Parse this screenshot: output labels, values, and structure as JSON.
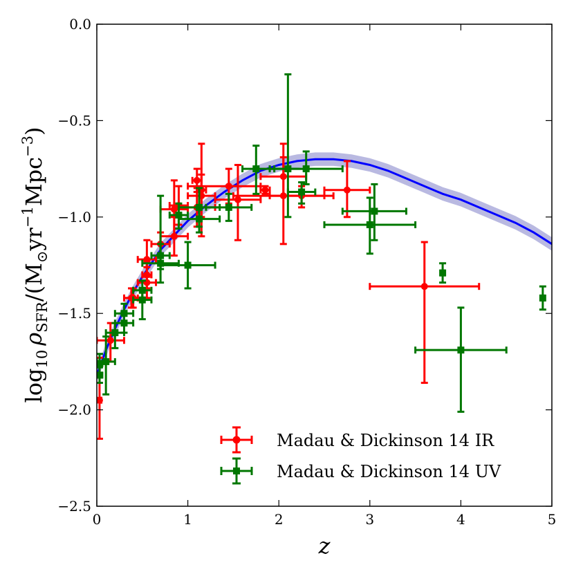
{
  "chart_data": {
    "type": "scatter",
    "title": "",
    "xlabel": "z",
    "ylabel": "log10 ρSFR/(M⊙yr−1Mpc−3)",
    "ylabel_parts": {
      "prefix": "log",
      "prefix_sub": "10",
      "rho": "ρ",
      "rho_sub": "SFR",
      "unit_open": "/(M",
      "sun": "⊙",
      "yr": "yr",
      "yr_exp": "−1",
      "mpc": "Mpc",
      "mpc_exp": "−3",
      "unit_close": ")"
    },
    "xlim": [
      0,
      5
    ],
    "ylim": [
      -2.5,
      0.0
    ],
    "xticks": [
      0,
      1,
      2,
      3,
      4,
      5
    ],
    "xtick_labels": [
      "0",
      "1",
      "2",
      "3",
      "4",
      "5"
    ],
    "yticks": [
      -2.5,
      -2.0,
      -1.5,
      -1.0,
      -0.5,
      0.0
    ],
    "ytick_labels": [
      "−2.5",
      "−2.0",
      "−1.5",
      "−1.0",
      "−0.5",
      "0.0"
    ],
    "legend_position": "lower-right",
    "colors": {
      "ir": "#ff0000",
      "uv": "#007700",
      "model": "#0000ff",
      "band": "#8080c8"
    },
    "series": [
      {
        "name": "Madau & Dickinson 14 IR",
        "marker": "circle",
        "color": "#ff0000",
        "points": [
          {
            "x": 0.03,
            "y": -1.95,
            "xlo": 0.0,
            "xhi": 0.05,
            "ylo": -2.15,
            "yhi": -1.73
          },
          {
            "x": 0.15,
            "y": -1.64,
            "xlo": 0.0,
            "xhi": 0.3,
            "ylo": -1.75,
            "yhi": -1.55
          },
          {
            "x": 0.38,
            "y": -1.42,
            "xlo": 0.3,
            "xhi": 0.45,
            "ylo": -1.47,
            "yhi": -1.37
          },
          {
            "x": 0.4,
            "y": -1.42,
            "xlo": 0.3,
            "xhi": 0.5,
            "ylo": -1.47,
            "yhi": -1.37
          },
          {
            "x": 0.55,
            "y": -1.34,
            "xlo": 0.45,
            "xhi": 0.65,
            "ylo": -1.42,
            "yhi": -1.26
          },
          {
            "x": 0.55,
            "y": -1.22,
            "xlo": 0.45,
            "xhi": 0.65,
            "ylo": -1.31,
            "yhi": -1.12
          },
          {
            "x": 0.55,
            "y": -1.3,
            "xlo": 0.5,
            "xhi": 0.6,
            "ylo": -1.37,
            "yhi": -1.23
          },
          {
            "x": 0.7,
            "y": -1.14,
            "xlo": 0.6,
            "xhi": 0.8,
            "ylo": -1.2,
            "yhi": -1.08
          },
          {
            "x": 0.85,
            "y": -1.1,
            "xlo": 0.7,
            "xhi": 1.0,
            "ylo": -1.2,
            "yhi": -1.0
          },
          {
            "x": 0.9,
            "y": -0.94,
            "xlo": 0.8,
            "xhi": 1.0,
            "ylo": -1.04,
            "yhi": -0.84
          },
          {
            "x": 0.85,
            "y": -0.96,
            "xlo": 0.7,
            "xhi": 1.0,
            "ylo": -1.1,
            "yhi": -0.81
          },
          {
            "x": 1.1,
            "y": -0.81,
            "xlo": 1.05,
            "xhi": 1.15,
            "ylo": -0.87,
            "yhi": -0.75
          },
          {
            "x": 1.15,
            "y": -0.89,
            "xlo": 1.0,
            "xhi": 1.3,
            "ylo": -1.0,
            "yhi": -0.78
          },
          {
            "x": 1.15,
            "y": -0.86,
            "xlo": 1.1,
            "xhi": 1.2,
            "ylo": -1.1,
            "yhi": -0.62
          },
          {
            "x": 1.1,
            "y": -0.95,
            "xlo": 0.9,
            "xhi": 1.3,
            "ylo": -1.05,
            "yhi": -0.85
          },
          {
            "x": 1.45,
            "y": -0.84,
            "xlo": 1.0,
            "xhi": 1.8,
            "ylo": -0.93,
            "yhi": -0.75
          },
          {
            "x": 1.55,
            "y": -0.91,
            "xlo": 1.3,
            "xhi": 1.8,
            "ylo": -1.12,
            "yhi": -0.73
          },
          {
            "x": 1.85,
            "y": -0.86,
            "xlo": 1.8,
            "xhi": 1.9,
            "ylo": -0.88,
            "yhi": -0.84
          },
          {
            "x": 2.05,
            "y": -0.79,
            "xlo": 1.8,
            "xhi": 2.3,
            "ylo": -0.89,
            "yhi": -0.69
          },
          {
            "x": 2.05,
            "y": -0.89,
            "xlo": 1.5,
            "xhi": 2.6,
            "ylo": -1.14,
            "yhi": -0.62
          },
          {
            "x": 2.25,
            "y": -0.89,
            "xlo": 1.9,
            "xhi": 2.5,
            "ylo": -0.95,
            "yhi": -0.84
          },
          {
            "x": 2.75,
            "y": -0.86,
            "xlo": 2.5,
            "xhi": 3.0,
            "ylo": -1.0,
            "yhi": -0.71
          },
          {
            "x": 3.6,
            "y": -1.36,
            "xlo": 3.0,
            "xhi": 4.2,
            "ylo": -1.86,
            "yhi": -1.13
          }
        ]
      },
      {
        "name": "Madau & Dickinson 14 UV",
        "marker": "square",
        "color": "#007700",
        "points": [
          {
            "x": 0.03,
            "y": -1.76,
            "xlo": 0.0,
            "xhi": 0.06,
            "ylo": -1.82,
            "yhi": -1.71
          },
          {
            "x": 0.03,
            "y": -1.82,
            "xlo": 0.0,
            "xhi": 0.06,
            "ylo": -1.86,
            "yhi": -1.78
          },
          {
            "x": 0.1,
            "y": -1.75,
            "xlo": 0.0,
            "xhi": 0.2,
            "ylo": -1.92,
            "yhi": -1.62
          },
          {
            "x": 0.2,
            "y": -1.6,
            "xlo": 0.1,
            "xhi": 0.3,
            "ylo": -1.68,
            "yhi": -1.55
          },
          {
            "x": 0.3,
            "y": -1.55,
            "xlo": 0.2,
            "xhi": 0.4,
            "ylo": -1.6,
            "yhi": -1.49
          },
          {
            "x": 0.3,
            "y": -1.5,
            "xlo": 0.2,
            "xhi": 0.4,
            "ylo": -1.55,
            "yhi": -1.45
          },
          {
            "x": 0.5,
            "y": -1.43,
            "xlo": 0.4,
            "xhi": 0.6,
            "ylo": -1.53,
            "yhi": -1.37
          },
          {
            "x": 0.5,
            "y": -1.38,
            "xlo": 0.4,
            "xhi": 0.6,
            "ylo": -1.43,
            "yhi": -1.33
          },
          {
            "x": 0.7,
            "y": -1.24,
            "xlo": 0.5,
            "xhi": 0.9,
            "ylo": -1.34,
            "yhi": -1.14
          },
          {
            "x": 0.7,
            "y": -1.2,
            "xlo": 0.6,
            "xhi": 0.8,
            "ylo": -1.27,
            "yhi": -0.89
          },
          {
            "x": 0.9,
            "y": -0.99,
            "xlo": 0.8,
            "xhi": 1.0,
            "ylo": -1.06,
            "yhi": -0.93
          },
          {
            "x": 1.0,
            "y": -1.25,
            "xlo": 0.7,
            "xhi": 1.3,
            "ylo": -1.37,
            "yhi": -1.13
          },
          {
            "x": 1.125,
            "y": -1.01,
            "xlo": 0.9,
            "xhi": 1.35,
            "ylo": -1.08,
            "yhi": -0.95
          },
          {
            "x": 1.125,
            "y": -0.95,
            "xlo": 0.9,
            "xhi": 1.35,
            "ylo": -1.05,
            "yhi": -0.85
          },
          {
            "x": 1.45,
            "y": -0.95,
            "xlo": 1.2,
            "xhi": 1.7,
            "ylo": -1.02,
            "yhi": -0.88
          },
          {
            "x": 1.75,
            "y": -0.75,
            "xlo": 1.6,
            "xhi": 1.95,
            "ylo": -0.88,
            "yhi": -0.63
          },
          {
            "x": 2.1,
            "y": -0.75,
            "xlo": 1.9,
            "xhi": 2.3,
            "ylo": -1.0,
            "yhi": -0.26
          },
          {
            "x": 2.25,
            "y": -0.87,
            "xlo": 2.1,
            "xhi": 2.4,
            "ylo": -0.93,
            "yhi": -0.82
          },
          {
            "x": 2.3,
            "y": -0.75,
            "xlo": 1.9,
            "xhi": 2.7,
            "ylo": -0.83,
            "yhi": -0.66
          },
          {
            "x": 3.0,
            "y": -1.04,
            "xlo": 2.5,
            "xhi": 3.5,
            "ylo": -1.19,
            "yhi": -0.9
          },
          {
            "x": 3.05,
            "y": -0.97,
            "xlo": 2.7,
            "xhi": 3.4,
            "ylo": -1.12,
            "yhi": -0.83
          },
          {
            "x": 3.8,
            "y": -1.29,
            "xlo": 3.78,
            "xhi": 3.82,
            "ylo": -1.34,
            "yhi": -1.24
          },
          {
            "x": 4.0,
            "y": -1.69,
            "xlo": 3.5,
            "xhi": 4.5,
            "ylo": -2.01,
            "yhi": -1.47
          },
          {
            "x": 4.9,
            "y": -1.42,
            "xlo": 4.88,
            "xhi": 4.92,
            "ylo": -1.48,
            "yhi": -1.36
          }
        ]
      }
    ],
    "model_curve": {
      "x": [
        0.0,
        0.1,
        0.2,
        0.3,
        0.4,
        0.5,
        0.6,
        0.7,
        0.8,
        0.9,
        1.0,
        1.2,
        1.4,
        1.6,
        1.8,
        2.0,
        2.2,
        2.4,
        2.6,
        2.8,
        3.0,
        3.2,
        3.4,
        3.6,
        3.8,
        4.0,
        4.2,
        4.4,
        4.6,
        4.8,
        5.0
      ],
      "y": [
        -1.82,
        -1.69,
        -1.58,
        -1.48,
        -1.39,
        -1.31,
        -1.24,
        -1.17,
        -1.12,
        -1.07,
        -1.02,
        -0.94,
        -0.87,
        -0.81,
        -0.76,
        -0.73,
        -0.71,
        -0.7,
        -0.7,
        -0.71,
        -0.73,
        -0.76,
        -0.8,
        -0.84,
        -0.88,
        -0.91,
        -0.95,
        -0.99,
        -1.03,
        -1.08,
        -1.14
      ],
      "band_halfwidth": 0.035
    }
  }
}
